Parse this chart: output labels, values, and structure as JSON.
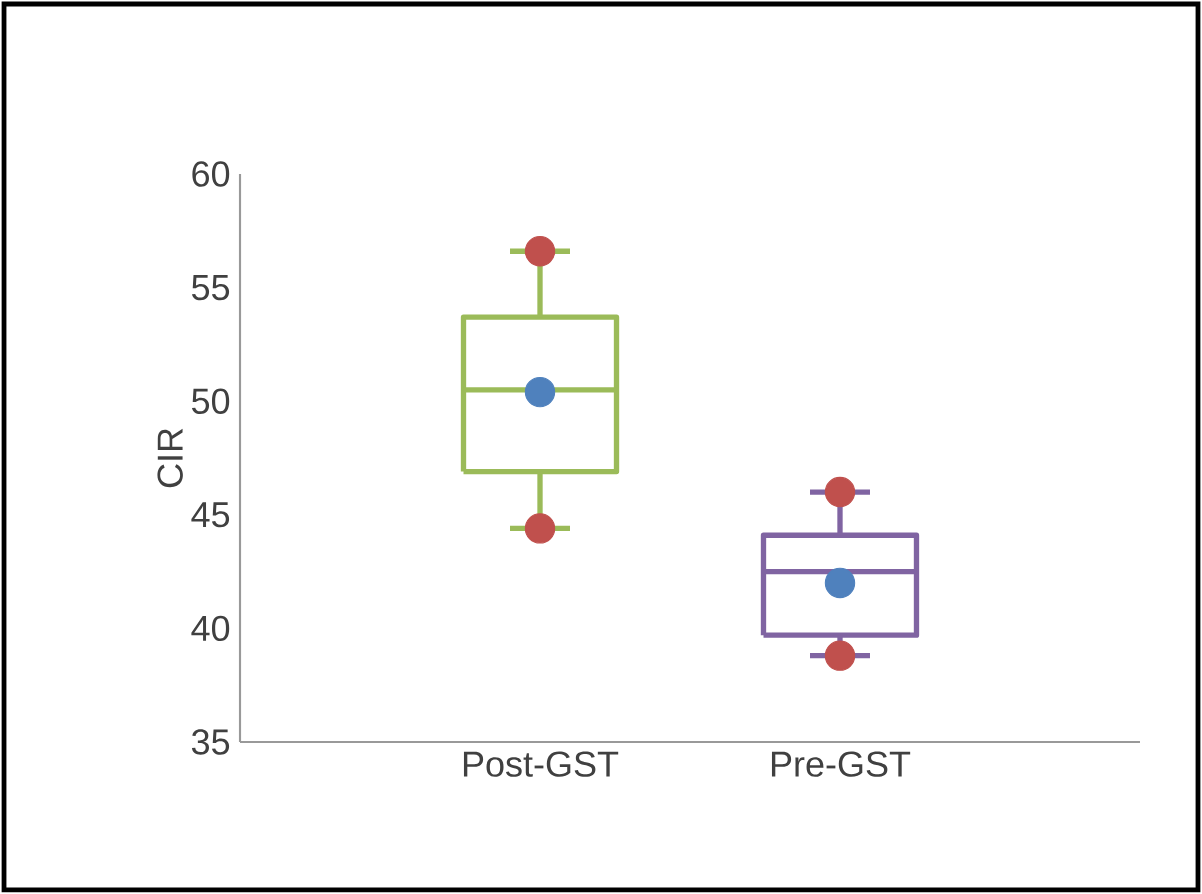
{
  "chart_data": {
    "type": "box",
    "ylabel": "CIR",
    "categories": [
      "Post-GST",
      "Pre-GST"
    ],
    "ylim": [
      35,
      60
    ],
    "yticks": [
      35,
      40,
      45,
      50,
      55,
      60
    ],
    "grid": false,
    "series": [
      {
        "type": "box",
        "colors": [
          "#9bbb59",
          "#8064a2"
        ],
        "boxes": [
          {
            "low": 44.4,
            "q1": 46.9,
            "median": 50.5,
            "q3": 53.7,
            "high": 56.6
          },
          {
            "low": 38.8,
            "q1": 39.7,
            "median": 42.5,
            "q3": 44.1,
            "high": 46
          }
        ]
      },
      {
        "type": "scatter",
        "color": "#c0504d",
        "x": [
          "Post-GST",
          "Post-GST",
          "Pre-GST",
          "Pre-GST"
        ],
        "values": [
          56.6,
          44.4,
          46,
          38.8
        ]
      },
      {
        "type": "scatter",
        "color": "#4f81bd",
        "x": [
          "Post-GST",
          "Pre-GST"
        ],
        "values": [
          50.4,
          42
        ]
      }
    ]
  }
}
